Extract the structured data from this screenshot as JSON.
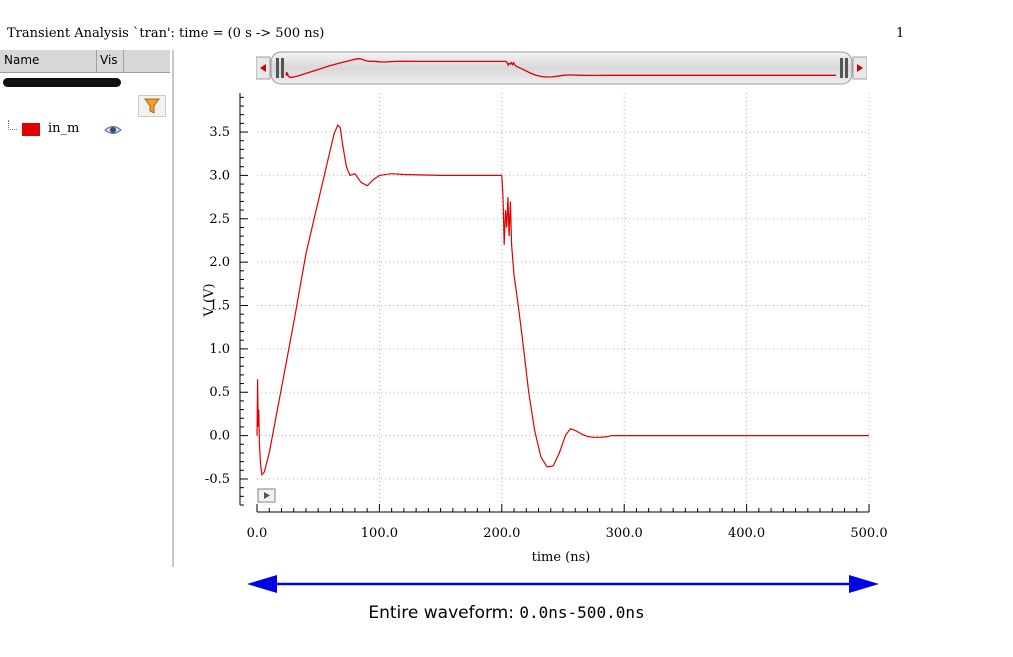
{
  "header": {
    "title": "Transient Analysis `tran': time = (0 s -> 500 ns)",
    "plot_number": "1"
  },
  "sidebar": {
    "col_name": "Name",
    "col_vis": "Vis",
    "filter_icon": "filter-icon",
    "signals": [
      {
        "name": "in_m",
        "color": "#e00000",
        "visible_icon": "eye-icon"
      }
    ]
  },
  "annotation": {
    "label": "Entire waveform: ",
    "range": "0.0ns-500.0ns",
    "arrow_color": "#0000e6"
  },
  "chart_data": {
    "type": "line",
    "xlabel": "time (ns)",
    "ylabel": "V (V)",
    "xlim": [
      0,
      500
    ],
    "ylim": [
      -0.8,
      3.95
    ],
    "x_ticks": [
      "0.0",
      "100.0",
      "200.0",
      "300.0",
      "400.0",
      "500.0"
    ],
    "x_tick_values": [
      0,
      100,
      200,
      300,
      400,
      500
    ],
    "y_ticks": [
      "-0.5",
      "0.0",
      "0.5",
      "1.0",
      "1.5",
      "2.0",
      "2.5",
      "3.0",
      "3.5"
    ],
    "y_tick_values": [
      -0.5,
      0,
      0.5,
      1.0,
      1.5,
      2.0,
      2.5,
      3.0,
      3.5
    ],
    "grid": true,
    "series": [
      {
        "name": "in_m",
        "color": "#e00000",
        "x": [
          0,
          0.5,
          1,
          1.5,
          2,
          3,
          4,
          6,
          10,
          20,
          30,
          40,
          50,
          60,
          63,
          66,
          68,
          70,
          73,
          76,
          80,
          85,
          90,
          95,
          100,
          110,
          120,
          150,
          199,
          200,
          201,
          202,
          203,
          204,
          205,
          206,
          207,
          208,
          210,
          213,
          217,
          222,
          227,
          232,
          237,
          242,
          247,
          252,
          256,
          260,
          265,
          270,
          275,
          280,
          285,
          290,
          300,
          350,
          400,
          450,
          500
        ],
        "y": [
          0,
          0.65,
          0.1,
          0.3,
          -0.1,
          -0.35,
          -0.45,
          -0.42,
          -0.2,
          0.55,
          1.3,
          2.1,
          2.7,
          3.3,
          3.48,
          3.58,
          3.55,
          3.35,
          3.1,
          3.0,
          3.02,
          2.92,
          2.88,
          2.95,
          3.0,
          3.02,
          3.01,
          3.0,
          3.0,
          3.0,
          2.75,
          2.2,
          2.6,
          2.4,
          2.75,
          2.3,
          2.7,
          2.2,
          1.85,
          1.55,
          1.1,
          0.5,
          0.05,
          -0.25,
          -0.36,
          -0.35,
          -0.2,
          0.0,
          0.08,
          0.06,
          0.02,
          -0.01,
          -0.02,
          -0.02,
          -0.015,
          0.0,
          0.0,
          0.0,
          0.0,
          0.0,
          0.0
        ]
      }
    ]
  }
}
